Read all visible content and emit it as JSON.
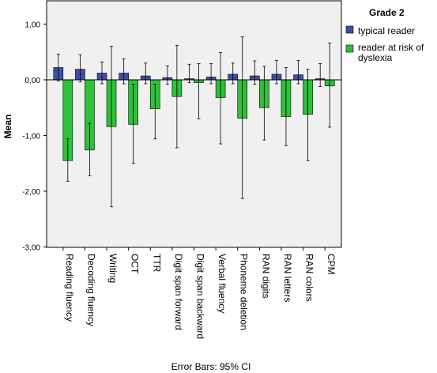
{
  "chart_data": {
    "type": "bar",
    "ylabel": "Mean",
    "ylim": [
      -3,
      1.4
    ],
    "yticks": [
      -3,
      -2,
      -1,
      0,
      1
    ],
    "ytick_labels": [
      "-3,00",
      "-2,00",
      "-1,00",
      "0,00",
      "1,00"
    ],
    "categories": [
      "Reading fluency",
      "Decoding fluency",
      "Writing",
      "OCT",
      "TTR",
      "Digit span forward",
      "Digit span backward",
      "Verbal fluency",
      "Phoneme deletion",
      "RAN digits",
      "RAN letters",
      "RAN colors",
      "CPM"
    ],
    "legend_title": "Grade 2",
    "legend_position": "top-right",
    "footer": "Error Bars: 95% CI",
    "grid": false,
    "series": [
      {
        "name": "typical reader",
        "color": "#3b50a6",
        "values": [
          0.22,
          0.19,
          0.12,
          0.12,
          0.07,
          0.04,
          0.02,
          0.05,
          0.1,
          0.07,
          0.1,
          0.09,
          0.02
        ],
        "ci_low": [
          -0.02,
          -0.04,
          -0.07,
          -0.07,
          -0.07,
          -0.08,
          -0.05,
          -0.07,
          -0.07,
          -0.08,
          -0.07,
          -0.07,
          -0.12
        ],
        "ci_high": [
          0.46,
          0.45,
          0.32,
          0.38,
          0.3,
          0.25,
          0.28,
          0.29,
          0.3,
          0.34,
          0.35,
          0.35,
          0.29
        ]
      },
      {
        "name": "reader at risk of dyslexia",
        "color": "#2ec13a",
        "values": [
          -1.45,
          -1.26,
          -0.84,
          -0.8,
          -0.52,
          -0.3,
          -0.05,
          -0.32,
          -0.69,
          -0.5,
          -0.66,
          -0.62,
          -0.11
        ],
        "ci_low": [
          -1.82,
          -1.72,
          -2.28,
          -1.5,
          -1.06,
          -1.22,
          -0.7,
          -1.15,
          -2.13,
          -1.08,
          -1.18,
          -1.45,
          -0.85
        ],
        "ci_high": [
          -1.06,
          -0.78,
          0.6,
          -0.08,
          -0.08,
          0.62,
          0.29,
          0.49,
          0.77,
          0.24,
          0.22,
          0.19,
          0.66
        ]
      }
    ]
  }
}
